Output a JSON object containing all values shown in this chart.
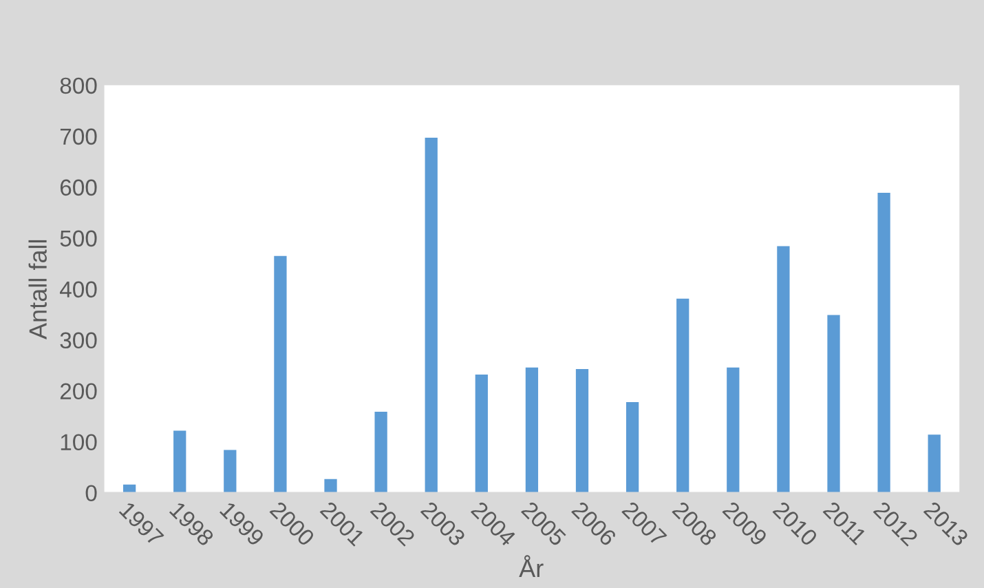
{
  "chart_data": {
    "type": "bar",
    "xlabel": "År",
    "ylabel": "Antall fall",
    "categories": [
      "1997",
      "1998",
      "1999",
      "2000",
      "2001",
      "2002",
      "2003",
      "2004",
      "2005",
      "2006",
      "2007",
      "2008",
      "2009",
      "2010",
      "2011",
      "2012",
      "2013"
    ],
    "values": [
      16,
      122,
      84,
      465,
      27,
      159,
      697,
      232,
      246,
      243,
      178,
      381,
      246,
      484,
      349,
      589,
      114
    ],
    "color": "#5b9bd5",
    "ylim": [
      0,
      800
    ],
    "yticks": [
      0,
      100,
      200,
      300,
      400,
      500,
      600,
      700,
      800
    ],
    "grid": false
  }
}
